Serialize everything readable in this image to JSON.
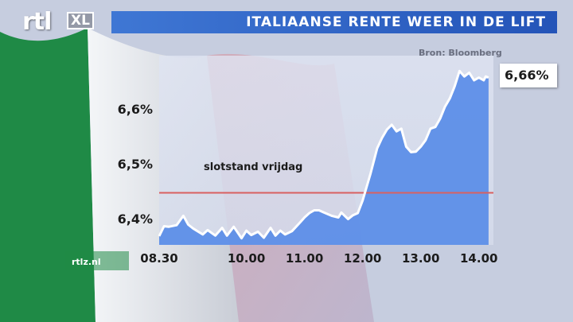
{
  "header": {
    "logo_text": "rtl",
    "logo_badge": "XL",
    "title": "ITALIAANSE RENTE WEER IN DE LIFT"
  },
  "source": "Bron: Bloomberg",
  "footer": "rtlz.nl",
  "colors": {
    "title_bar": "#2f63c4",
    "area_fill": "#4f86e8",
    "line": "#ffffff",
    "reference_line": "#d96060"
  },
  "chart_data": {
    "type": "area",
    "title": "ITALIAANSE RENTE WEER IN DE LIFT",
    "xlabel": "",
    "ylabel": "",
    "x_ticks": [
      "08.30",
      "10.00",
      "11.00",
      "12.00",
      "13.00",
      "14.00"
    ],
    "y_ticks": [
      "6,4%",
      "6,5%",
      "6,6%"
    ],
    "y_tick_values": [
      6.4,
      6.5,
      6.6
    ],
    "ylim": [
      6.355,
      6.7
    ],
    "xlim": [
      "08:30",
      "14:15"
    ],
    "grid": false,
    "reference_line": {
      "label": "slotstand vrijdag",
      "value": 6.45
    },
    "last_value_label": "6,66%",
    "series": [
      {
        "x": [
          "08:30",
          "08:35",
          "08:40",
          "08:48",
          "08:55",
          "09:00",
          "09:05",
          "09:15",
          "09:20",
          "09:28",
          "09:35",
          "09:40",
          "09:47",
          "09:55",
          "10:00",
          "10:05",
          "10:12",
          "10:18",
          "10:25",
          "10:30",
          "10:35",
          "10:40",
          "10:47",
          "10:55",
          "11:00",
          "11:05",
          "11:10",
          "11:15",
          "11:20",
          "11:28",
          "11:35",
          "11:38",
          "11:45",
          "11:50",
          "11:55",
          "12:00",
          "12:08",
          "12:15",
          "12:20",
          "12:25",
          "12:30",
          "12:35",
          "12:40",
          "12:45",
          "12:50",
          "12:55",
          "13:00",
          "13:05",
          "13:10",
          "13:15",
          "13:20",
          "13:25",
          "13:30",
          "13:35",
          "13:40",
          "13:45",
          "13:50",
          "13:55",
          "14:00",
          "14:05",
          "14:07",
          "14:10"
        ],
        "y": [
          6.371,
          6.389,
          6.388,
          6.391,
          6.408,
          6.392,
          6.385,
          6.374,
          6.382,
          6.372,
          6.386,
          6.372,
          6.388,
          6.367,
          6.381,
          6.373,
          6.379,
          6.368,
          6.386,
          6.372,
          6.381,
          6.374,
          6.38,
          6.395,
          6.405,
          6.413,
          6.418,
          6.418,
          6.414,
          6.408,
          6.405,
          6.414,
          6.402,
          6.409,
          6.413,
          6.436,
          6.484,
          6.531,
          6.55,
          6.565,
          6.574,
          6.562,
          6.567,
          6.534,
          6.524,
          6.525,
          6.534,
          6.546,
          6.567,
          6.57,
          6.585,
          6.607,
          6.622,
          6.644,
          6.672,
          6.662,
          6.669,
          6.655,
          6.66,
          6.655,
          6.662,
          6.66
        ]
      }
    ]
  }
}
